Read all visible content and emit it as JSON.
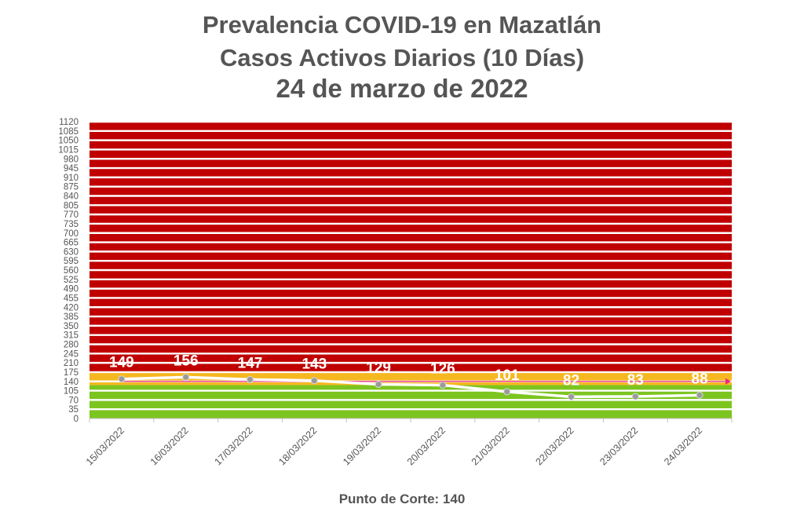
{
  "title_line1": "Prevalencia COVID-19 en Mazatlán",
  "title_line2": "Casos Activos Diarios (10 Días)",
  "title_line3": "24 de marzo de 2022",
  "footer": "Punto de Corte: 140",
  "colors": {
    "red_zone": "#c00000",
    "yellow_zone": "#f6b820",
    "green_zone": "#7cc520",
    "grid_line": "#ffffff",
    "line": "#ffffff",
    "marker": "#9a9a9a",
    "cutoff_arrow": "#e8287a",
    "title": "#555555",
    "tick": "#555555"
  },
  "chart_data": {
    "type": "line",
    "title": "Prevalencia COVID-19 en Mazatlán — Casos Activos Diarios (10 Días) — 24 de marzo de 2022",
    "xlabel": "",
    "ylabel": "",
    "categories": [
      "15/03/2022",
      "16/03/2022",
      "17/03/2022",
      "18/03/2022",
      "19/03/2022",
      "20/03/2022",
      "21/03/2022",
      "22/03/2022",
      "23/03/2022",
      "24/03/2022"
    ],
    "series": [
      {
        "values": [
          149,
          156,
          147,
          143,
          129,
          126,
          101,
          82,
          83,
          88
        ]
      }
    ],
    "ylim": [
      0,
      1120
    ],
    "ytick_step": 35,
    "cutoff": 140,
    "zones": [
      {
        "from": 0,
        "to": 126,
        "color": "green"
      },
      {
        "from": 126,
        "to": 175,
        "color": "yellow"
      },
      {
        "from": 175,
        "to": 1120,
        "color": "red"
      }
    ],
    "grid": true,
    "legend": "none"
  }
}
